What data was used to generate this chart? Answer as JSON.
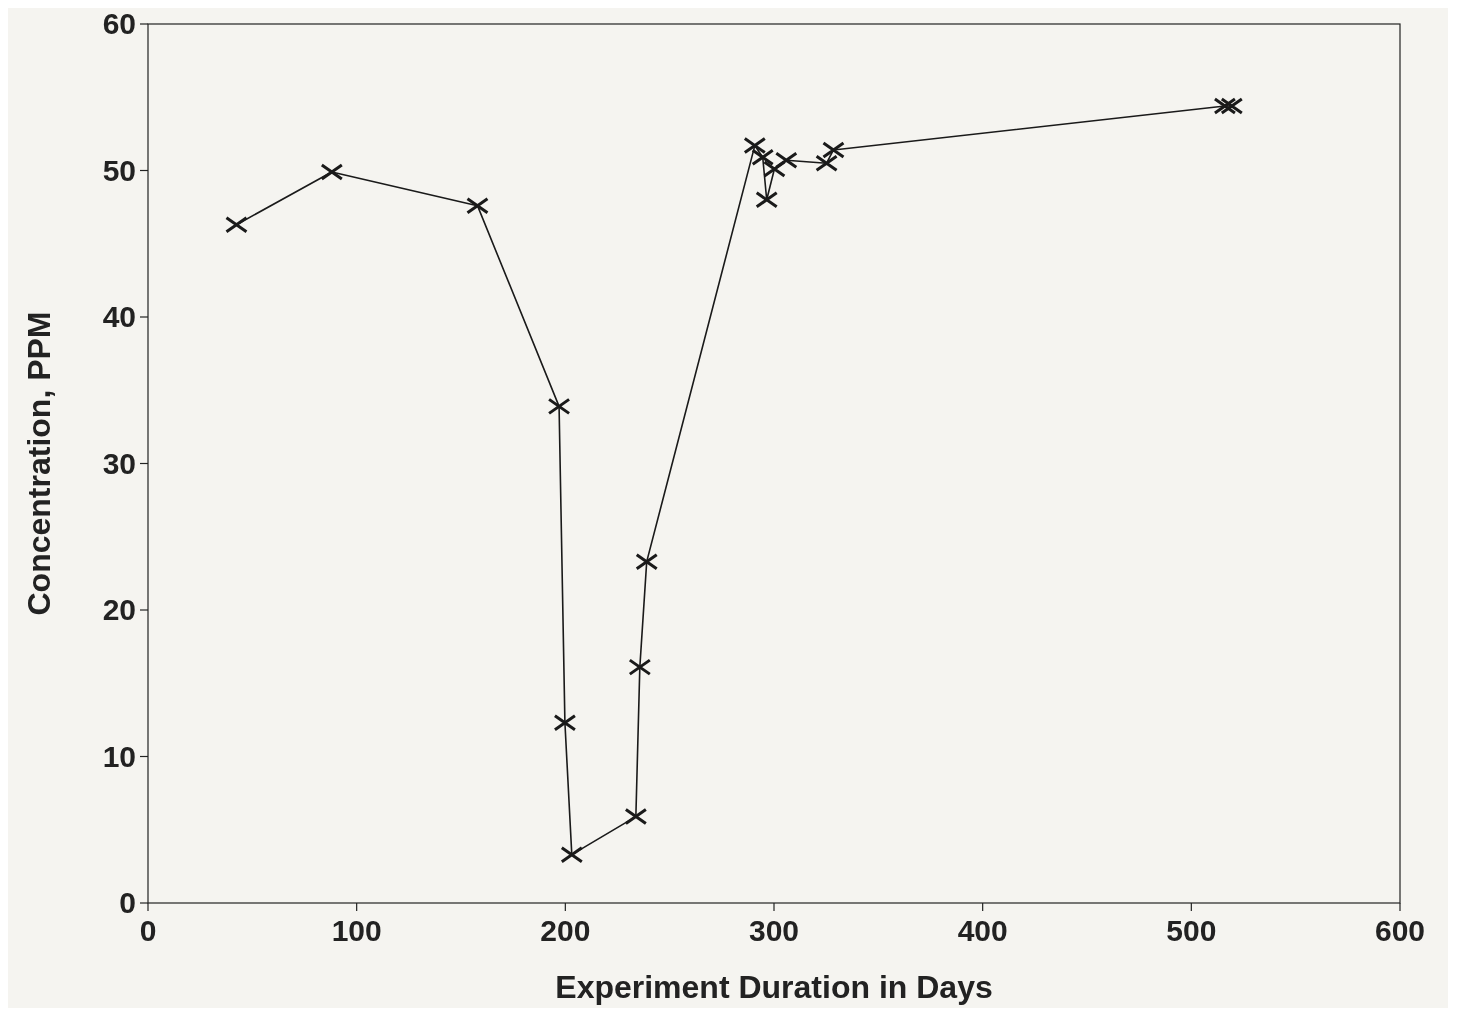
{
  "chart_data": {
    "type": "line",
    "xlabel": "Experiment Duration in Days",
    "ylabel": "Concentration, PPM",
    "series": [
      {
        "color": "#1a1a1a",
        "x": [
          42.4,
          88.1,
          157.9,
          197.0,
          199.8,
          203.1,
          233.8,
          235.7,
          239.0,
          290.8,
          294.6,
          296.5,
          300.2,
          305.9,
          325.2,
          328.5,
          516.1,
          519.4
        ],
        "values": [
          46.3,
          49.9,
          47.6,
          33.9,
          12.3,
          3.3,
          5.9,
          16.1,
          23.3,
          51.7,
          50.9,
          48.0,
          50.1,
          50.7,
          50.5,
          51.4,
          54.4,
          54.4
        ]
      }
    ],
    "xlim": [
      0,
      600
    ],
    "xticks": [
      0,
      100,
      200,
      300,
      400,
      500,
      600
    ],
    "ylim": [
      0,
      60
    ],
    "yticks": [
      0,
      10,
      20,
      30,
      40,
      50,
      60
    ],
    "marker": "cross",
    "line_style": "solid",
    "grid": false
  }
}
